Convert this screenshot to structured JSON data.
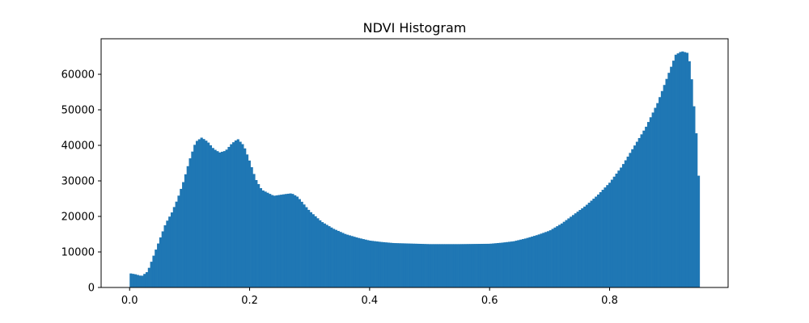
{
  "chart_data": {
    "type": "bar",
    "title": "NDVI Histogram",
    "xlabel": "",
    "ylabel": "",
    "xlim": [
      -0.0475,
      0.9975
    ],
    "ylim": [
      0,
      70000
    ],
    "grid": false,
    "color": "#1f77b4",
    "x_ticks": [
      0.0,
      0.2,
      0.4,
      0.6,
      0.8
    ],
    "x_tick_labels": [
      "0.0",
      "0.2",
      "0.4",
      "0.6",
      "0.8"
    ],
    "y_ticks": [
      0,
      10000,
      20000,
      30000,
      40000,
      50000,
      60000
    ],
    "y_tick_labels": [
      "0",
      "10000",
      "20000",
      "30000",
      "40000",
      "50000",
      "60000"
    ],
    "bin_range": [
      0.0,
      0.95
    ],
    "curve_x": [
      0.0,
      0.01,
      0.02,
      0.03,
      0.04,
      0.05,
      0.06,
      0.07,
      0.08,
      0.09,
      0.1,
      0.11,
      0.12,
      0.13,
      0.14,
      0.15,
      0.16,
      0.17,
      0.18,
      0.19,
      0.2,
      0.21,
      0.22,
      0.24,
      0.26,
      0.27,
      0.28,
      0.3,
      0.32,
      0.34,
      0.36,
      0.38,
      0.4,
      0.42,
      0.44,
      0.46,
      0.5,
      0.55,
      0.6,
      0.62,
      0.64,
      0.66,
      0.68,
      0.7,
      0.72,
      0.74,
      0.76,
      0.78,
      0.8,
      0.82,
      0.84,
      0.86,
      0.88,
      0.89,
      0.9,
      0.91,
      0.92,
      0.93,
      0.935,
      0.94,
      0.945,
      0.95
    ],
    "curve_y": [
      4000,
      3700,
      3200,
      4500,
      9000,
      13500,
      18000,
      21000,
      25000,
      30000,
      36000,
      41000,
      42200,
      41000,
      39000,
      38000,
      38500,
      40500,
      41800,
      40000,
      35500,
      30500,
      27500,
      25800,
      26300,
      26500,
      25500,
      21500,
      18500,
      16500,
      15000,
      14000,
      13200,
      12800,
      12500,
      12400,
      12200,
      12200,
      12300,
      12600,
      13000,
      13800,
      14800,
      16000,
      18000,
      20500,
      23000,
      26000,
      29500,
      34000,
      39500,
      45000,
      52000,
      56500,
      61000,
      65500,
      66500,
      66000,
      62000,
      52000,
      42000,
      25000
    ]
  }
}
